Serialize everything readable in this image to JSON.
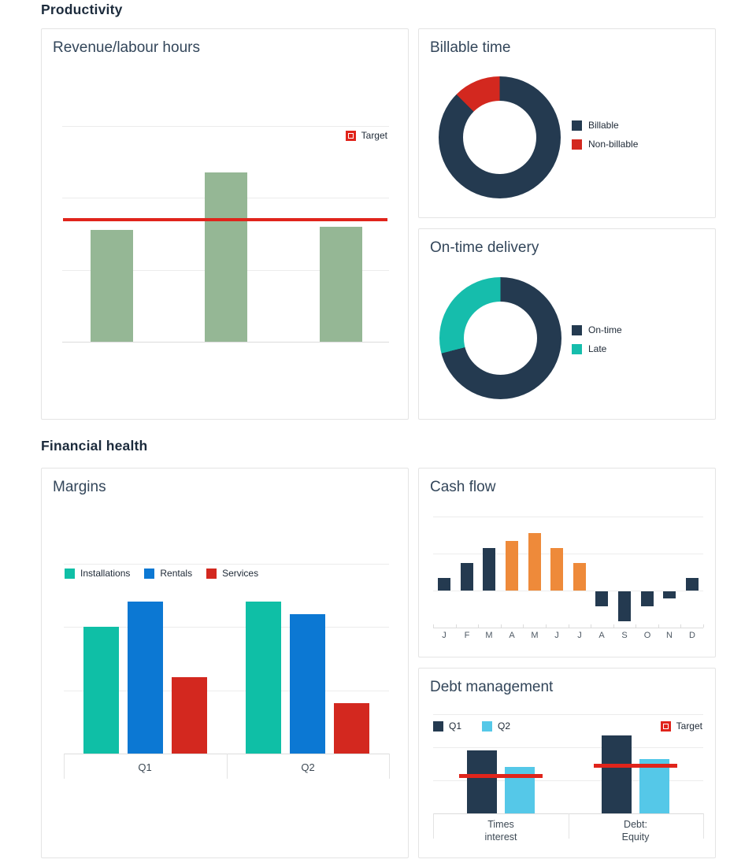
{
  "headings": {
    "productivity": "Productivity",
    "financial": "Financial health"
  },
  "cards": {
    "revenue": {
      "title": "Revenue/labour hours",
      "target_label": "Target"
    },
    "billable": {
      "title": "Billable time",
      "legend": [
        "Billable",
        "Non-billable"
      ]
    },
    "ontime": {
      "title": "On-time delivery",
      "legend": [
        "On-time",
        "Late"
      ]
    },
    "margins": {
      "title": "Margins",
      "legend": [
        "Installations",
        "Rentals",
        "Services"
      ],
      "x_labels": [
        "Q1",
        "Q2"
      ]
    },
    "cashflow": {
      "title": "Cash flow",
      "months": [
        "J",
        "F",
        "M",
        "A",
        "M",
        "J",
        "J",
        "A",
        "S",
        "O",
        "N",
        "D"
      ]
    },
    "debt": {
      "title": "Debt management",
      "legend": [
        "Q1",
        "Q2"
      ],
      "target_label": "Target",
      "x_labels": [
        [
          "Times",
          "interest"
        ],
        [
          "Debt:",
          "Equity"
        ]
      ]
    }
  },
  "colors": {
    "navy": "#243A50",
    "green": "#95B795",
    "teal": "#0FBFA6",
    "teal_late": "#16BDAC",
    "blue": "#0C78D3",
    "cyan": "#55C8E8",
    "red": "#D3281F",
    "red_line": "#E0241B",
    "orange": "#EE8A3A",
    "gridline": "#ececec",
    "axis_line": "#dcdcdc",
    "card_border": "#e4e4e4",
    "heading_text": "#1C2B3C",
    "title_text": "#33465A",
    "label_text": "#3D4954"
  },
  "chart_data": [
    {
      "id": "revenue-labour-hours",
      "type": "bar",
      "title": "Revenue/labour hours",
      "categories": [
        "",
        "",
        ""
      ],
      "values": [
        1.55,
        2.35,
        1.6
      ],
      "target": 1.7,
      "legend": [
        "Target"
      ],
      "ylim": [
        0,
        3
      ],
      "grid": true,
      "note": "axes unlabeled; values estimated in gridline units; red horizontal target line across plot"
    },
    {
      "id": "billable-time",
      "type": "pie",
      "title": "Billable time",
      "labels": [
        "Billable",
        "Non-billable"
      ],
      "values": [
        87.5,
        12.5
      ],
      "unit": "percent-estimated",
      "legend_position": "right"
    },
    {
      "id": "on-time-delivery",
      "type": "pie",
      "title": "On-time delivery",
      "labels": [
        "On-time",
        "Late"
      ],
      "values": [
        71,
        29
      ],
      "unit": "percent-estimated",
      "legend_position": "right"
    },
    {
      "id": "margins",
      "type": "bar",
      "title": "Margins",
      "categories": [
        "Q1",
        "Q2"
      ],
      "series": [
        {
          "name": "Installations",
          "values": [
            2.0,
            2.4
          ]
        },
        {
          "name": "Rentals",
          "values": [
            2.4,
            2.2
          ]
        },
        {
          "name": "Services",
          "values": [
            1.2,
            0.8
          ]
        }
      ],
      "ylim": [
        0,
        3
      ],
      "grid": true,
      "legend_position": "top-left",
      "note": "y-axis unlabeled; values estimated in gridline units"
    },
    {
      "id": "cash-flow",
      "type": "bar",
      "title": "Cash flow",
      "categories": [
        "J",
        "F",
        "M",
        "A",
        "M",
        "J",
        "J",
        "A",
        "S",
        "O",
        "N",
        "D"
      ],
      "values": [
        0.35,
        0.75,
        1.15,
        1.35,
        1.55,
        1.15,
        0.75,
        -0.4,
        -0.8,
        -0.4,
        -0.2,
        0.35
      ],
      "highlight_indices": [
        3,
        4,
        5,
        6
      ],
      "ylim": [
        -1,
        2
      ],
      "grid": true,
      "note": "y-axis unlabeled; Apr-Jul bars highlighted orange, others navy; negative bars Aug-Nov"
    },
    {
      "id": "debt-management",
      "type": "bar",
      "title": "Debt management",
      "categories": [
        "Times interest",
        "Debt: Equity"
      ],
      "series": [
        {
          "name": "Q1",
          "values": [
            1.9,
            2.35
          ]
        },
        {
          "name": "Q2",
          "values": [
            1.4,
            1.65
          ]
        }
      ],
      "targets": [
        1.15,
        1.45
      ],
      "ylim": [
        0,
        3
      ],
      "grid": true,
      "note": "y-axis unlabeled; values estimated in gridline units; red target segment per group"
    }
  ]
}
